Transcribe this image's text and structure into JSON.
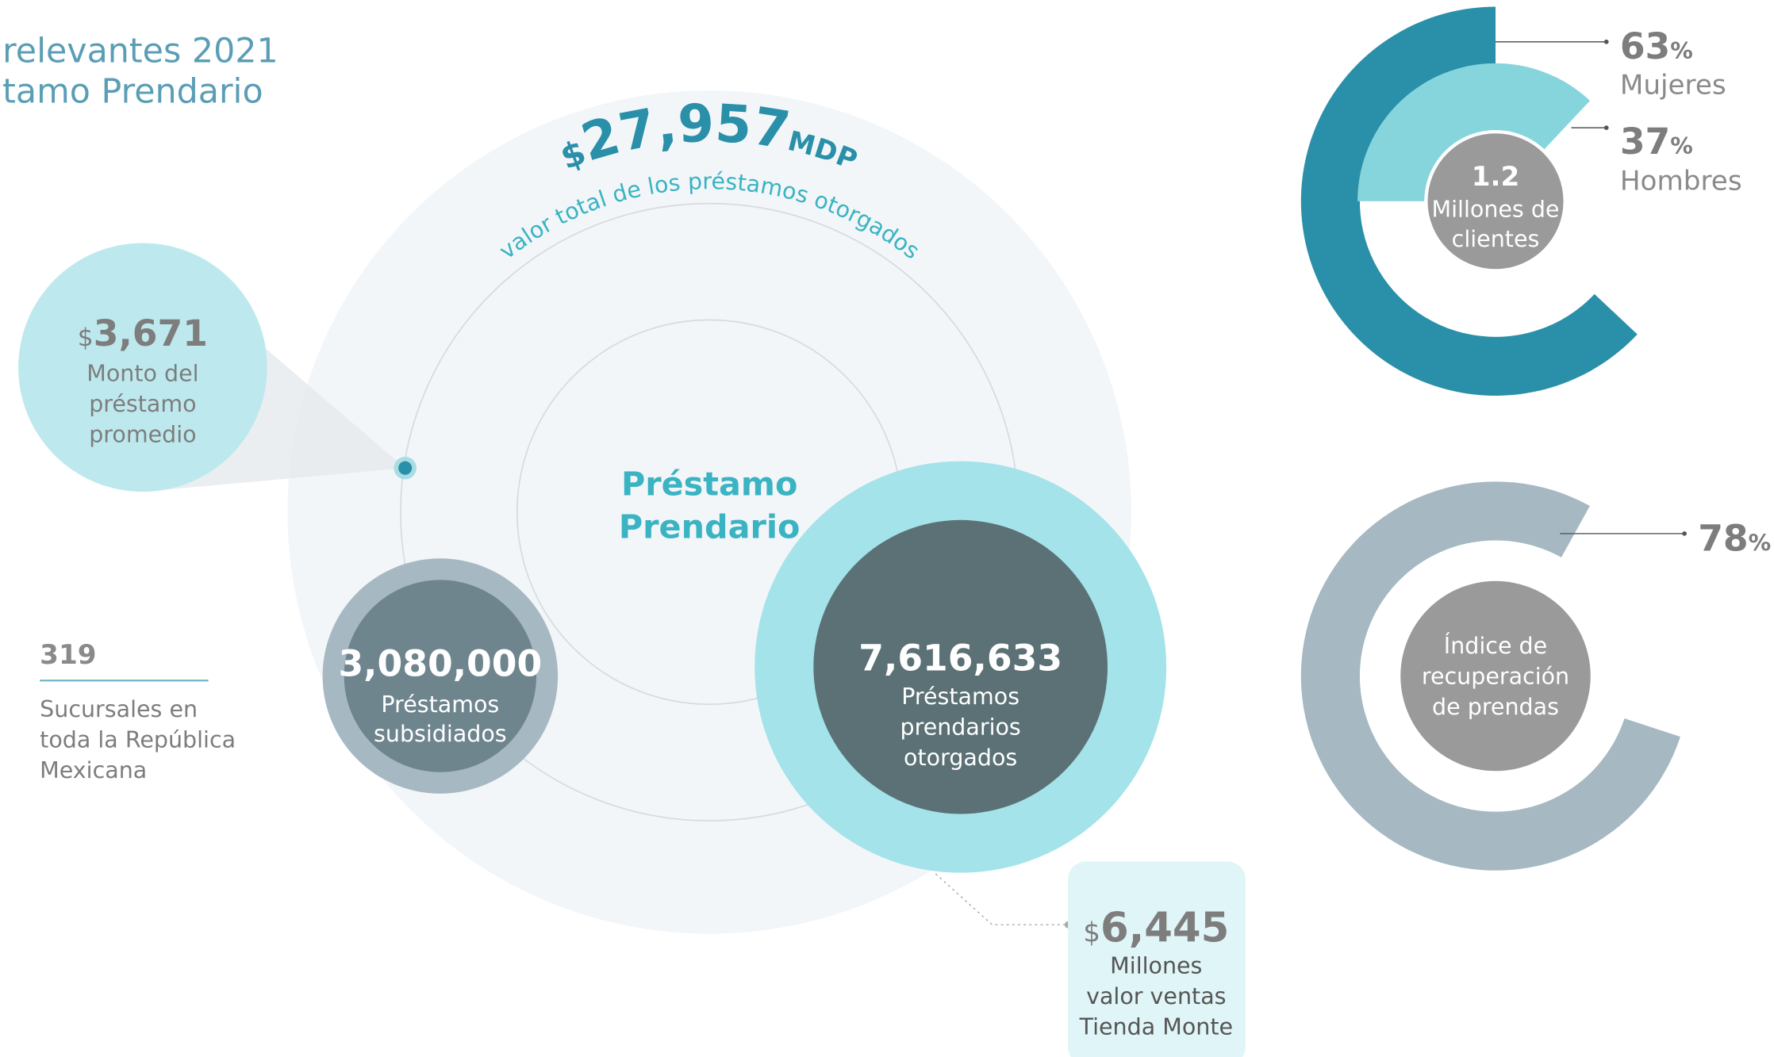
{
  "header": {
    "title_lines": [
      "relevantes 2021",
      "tamo Prendario"
    ]
  },
  "total": {
    "currency": "$",
    "amount": "27,957",
    "unit": "MDP",
    "label": "valor total de los préstamos otorgados"
  },
  "center": {
    "lines": [
      "Préstamo",
      "Prendario"
    ]
  },
  "average_loan": {
    "currency": "$",
    "amount": "3,671",
    "lines": [
      "Monto del",
      "préstamo",
      "promedio"
    ]
  },
  "branches": {
    "value": 319,
    "lines": [
      "Sucursales en",
      "toda la República",
      "Mexicana"
    ]
  },
  "subsidized": {
    "value": "3,080,000",
    "lines": [
      "Préstamos",
      "subsidiados"
    ]
  },
  "pawn_loans": {
    "value": "7,616,633",
    "lines": [
      "Préstamos",
      "prendarios",
      "otorgados"
    ]
  },
  "sales": {
    "currency": "$",
    "amount": "6,445",
    "lines": [
      "Millones",
      "valor ventas",
      "Tienda Monte"
    ]
  },
  "donut_clients": {
    "center_value": "1.2",
    "center_lines": [
      "Millones de",
      "clientes"
    ],
    "segments": [
      {
        "value": 63,
        "unit": "%",
        "label": "Mujeres",
        "color": "#2a8fa8"
      },
      {
        "value": 37,
        "unit": "%",
        "label": "Hombres",
        "color": "#86d5dc"
      }
    ]
  },
  "donut_recovery": {
    "value": 78,
    "unit": "%",
    "color": "#a6b8c2",
    "center_lines": [
      "Índice de",
      "recuperación",
      "de prendas"
    ]
  }
}
